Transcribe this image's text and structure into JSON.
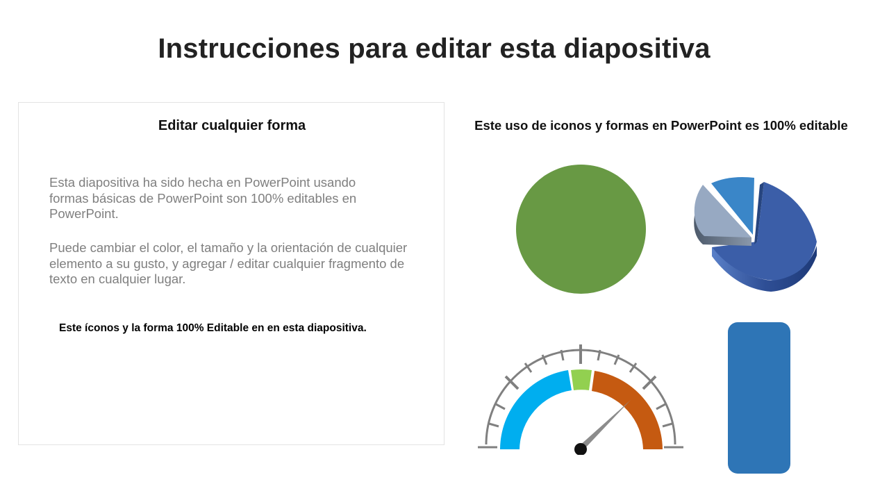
{
  "slide": {
    "title": "Instrucciones para editar esta diapositiva"
  },
  "left_panel": {
    "heading": "Editar cualquier forma",
    "paragraph_1": [
      "Esta diapositiva ha sido hecha en PowerPoint usando",
      "formas básicas de PowerPoint son 100% editables en",
      "PowerPoint."
    ],
    "paragraph_2": [
      "Puede cambiar el color, el tamaño y la orientación de cualquier",
      "elemento a su gusto, y agregar / editar cualquier fragmento de",
      "texto en cualquier lugar."
    ],
    "footer": "Este íconos y la forma 100% Editable en en esta diapositiva."
  },
  "right_panel": {
    "heading": "Este uso de iconos y formas en PowerPoint es 100% editable"
  },
  "shapes": {
    "circle_color": "#689944",
    "rounded_rect_color": "#2e75b6",
    "pie_colors": [
      "#3b5ea8",
      "#97a9c2",
      "#3a86c8"
    ],
    "gauge_colors": [
      "#00aeef",
      "#92d050",
      "#c55a11",
      "#808080"
    ]
  }
}
